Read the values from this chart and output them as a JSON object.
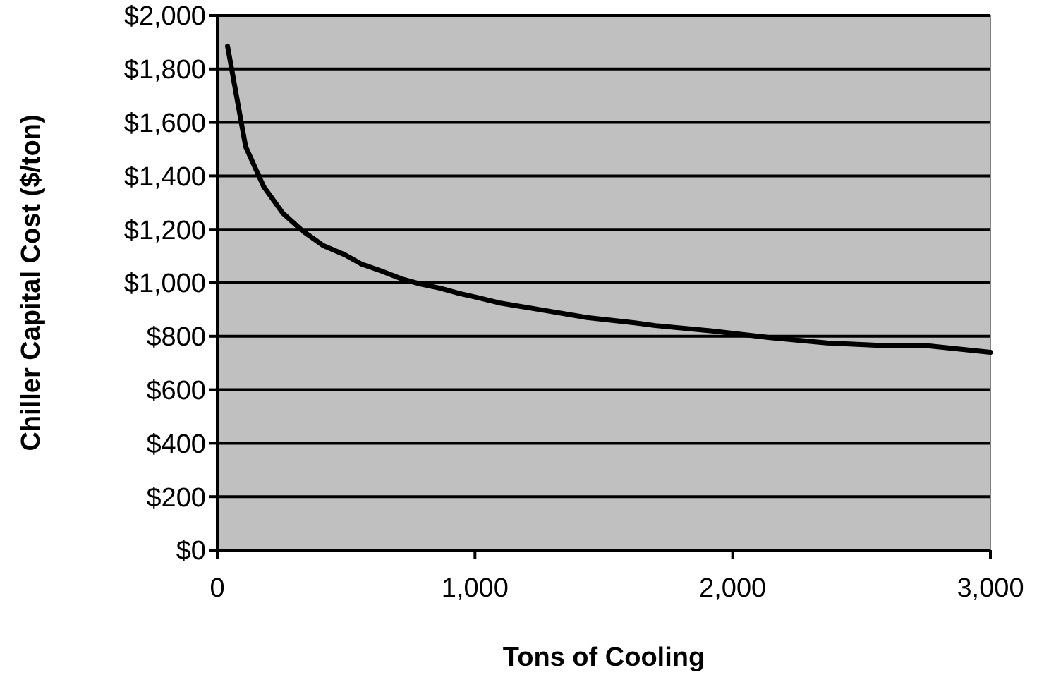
{
  "chart_data": {
    "type": "line",
    "xlabel": "Tons of Cooling",
    "ylabel": "Chiller Capital Cost ($/ton)",
    "x": [
      40,
      110,
      180,
      255,
      330,
      410,
      495,
      560,
      635,
      715,
      790,
      865,
      940,
      1010,
      1095,
      1250,
      1435,
      1620,
      1700,
      1920,
      2145,
      2365,
      2585,
      2750,
      3000
    ],
    "series": [
      {
        "color": "#000000",
        "values": [
          1885,
          1510,
          1360,
          1260,
          1195,
          1140,
          1105,
          1070,
          1045,
          1015,
          995,
          980,
          960,
          945,
          925,
          900,
          870,
          850,
          840,
          820,
          795,
          775,
          765,
          765,
          740
        ]
      }
    ],
    "xlim": [
      0,
      3000
    ],
    "xticks": [
      {
        "value": 0,
        "label": "0"
      },
      {
        "value": 1000,
        "label": "1,000"
      },
      {
        "value": 2000,
        "label": "2,000"
      },
      {
        "value": 3000,
        "label": "3,000"
      }
    ],
    "ylim": [
      0,
      2000
    ],
    "yticks": [
      {
        "value": 0,
        "label": "$0"
      },
      {
        "value": 200,
        "label": "$200"
      },
      {
        "value": 400,
        "label": "$400"
      },
      {
        "value": 600,
        "label": "$600"
      },
      {
        "value": 800,
        "label": "$800"
      },
      {
        "value": 1000,
        "label": "$1,000"
      },
      {
        "value": 1200,
        "label": "$1,200"
      },
      {
        "value": 1400,
        "label": "$1,400"
      },
      {
        "value": 1600,
        "label": "$1,600"
      },
      {
        "value": 1800,
        "label": "$1,800"
      },
      {
        "value": 2000,
        "label": "$2,000"
      }
    ],
    "grid": "y",
    "marker": "none",
    "line_style": "solid"
  }
}
